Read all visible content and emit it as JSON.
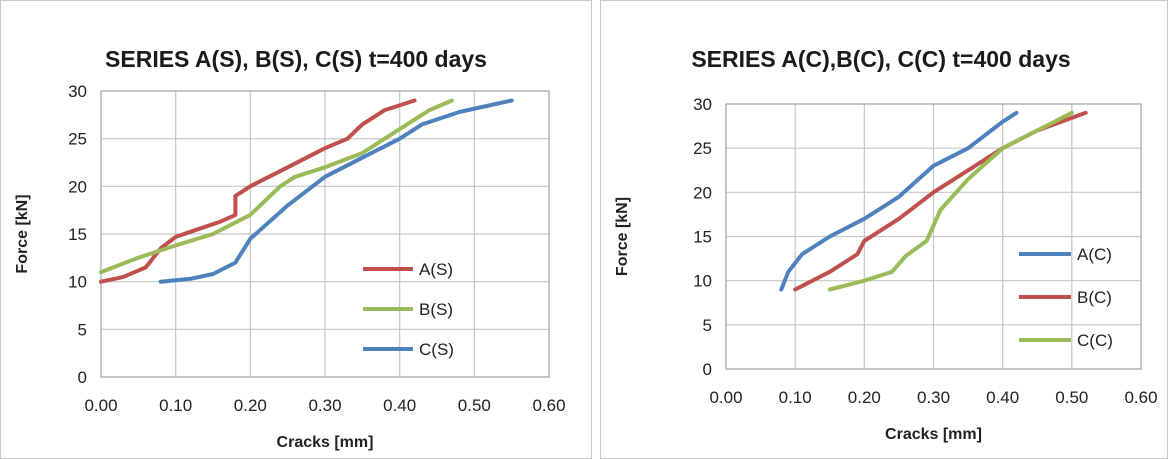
{
  "chart_data": [
    {
      "type": "line",
      "title": "SERIES A(S), B(S), C(S) t=400 days",
      "xlabel": "Cracks [mm]",
      "ylabel": "Force [kN]",
      "xlim": [
        0,
        0.6
      ],
      "ylim": [
        0,
        30
      ],
      "x_ticks": [
        "0.00",
        "0.10",
        "0.20",
        "0.30",
        "0.40",
        "0.50",
        "0.60"
      ],
      "y_ticks": [
        "0",
        "5",
        "10",
        "15",
        "20",
        "25",
        "30"
      ],
      "grid": true,
      "legend_position": "bottom-right",
      "series": [
        {
          "name": "A(S)",
          "color": "#c0504d",
          "points": [
            [
              0.0,
              10
            ],
            [
              0.03,
              10.5
            ],
            [
              0.06,
              11.5
            ],
            [
              0.08,
              13.5
            ],
            [
              0.1,
              14.7
            ],
            [
              0.13,
              15.5
            ],
            [
              0.16,
              16.3
            ],
            [
              0.18,
              17
            ],
            [
              0.18,
              19
            ],
            [
              0.2,
              20
            ],
            [
              0.25,
              22
            ],
            [
              0.3,
              24
            ],
            [
              0.33,
              25
            ],
            [
              0.35,
              26.5
            ],
            [
              0.38,
              28
            ],
            [
              0.42,
              29
            ]
          ]
        },
        {
          "name": "B(S)",
          "color": "#9bbb59",
          "points": [
            [
              0.0,
              11
            ],
            [
              0.05,
              12.5
            ],
            [
              0.1,
              13.8
            ],
            [
              0.15,
              15
            ],
            [
              0.2,
              17
            ],
            [
              0.24,
              20
            ],
            [
              0.26,
              21
            ],
            [
              0.3,
              22
            ],
            [
              0.35,
              23.5
            ],
            [
              0.4,
              26
            ],
            [
              0.44,
              28
            ],
            [
              0.47,
              29
            ]
          ]
        },
        {
          "name": "C(S)",
          "color": "#4f81bd",
          "points": [
            [
              0.08,
              10
            ],
            [
              0.12,
              10.3
            ],
            [
              0.15,
              10.8
            ],
            [
              0.18,
              12
            ],
            [
              0.2,
              14.5
            ],
            [
              0.25,
              18
            ],
            [
              0.3,
              21
            ],
            [
              0.35,
              23
            ],
            [
              0.4,
              25
            ],
            [
              0.43,
              26.5
            ],
            [
              0.48,
              27.8
            ],
            [
              0.55,
              29
            ]
          ]
        }
      ]
    },
    {
      "type": "line",
      "title": "SERIES A(C),B(C), C(C) t=400 days",
      "xlabel": "Cracks [mm]",
      "ylabel": "Force [kN]",
      "xlim": [
        0,
        0.6
      ],
      "ylim": [
        0,
        30
      ],
      "x_ticks": [
        "0.00",
        "0.10",
        "0.20",
        "0.30",
        "0.40",
        "0.50",
        "0.60"
      ],
      "y_ticks": [
        "0",
        "5",
        "10",
        "15",
        "20",
        "25",
        "30"
      ],
      "grid": true,
      "legend_position": "right",
      "series": [
        {
          "name": "A(C)",
          "color": "#4f81bd",
          "points": [
            [
              0.08,
              9
            ],
            [
              0.09,
              11
            ],
            [
              0.11,
              13
            ],
            [
              0.15,
              15
            ],
            [
              0.2,
              17
            ],
            [
              0.25,
              19.5
            ],
            [
              0.3,
              23
            ],
            [
              0.35,
              25
            ],
            [
              0.4,
              28
            ],
            [
              0.42,
              29
            ]
          ]
        },
        {
          "name": "B(C)",
          "color": "#c0504d",
          "points": [
            [
              0.1,
              9
            ],
            [
              0.15,
              11
            ],
            [
              0.19,
              13
            ],
            [
              0.2,
              14.5
            ],
            [
              0.25,
              17
            ],
            [
              0.3,
              20
            ],
            [
              0.35,
              22.5
            ],
            [
              0.4,
              25
            ],
            [
              0.45,
              27
            ],
            [
              0.52,
              29
            ]
          ]
        },
        {
          "name": "C(C)",
          "color": "#9bbb59",
          "points": [
            [
              0.15,
              9
            ],
            [
              0.2,
              10
            ],
            [
              0.24,
              11
            ],
            [
              0.26,
              12.8
            ],
            [
              0.29,
              14.5
            ],
            [
              0.31,
              18
            ],
            [
              0.35,
              21.5
            ],
            [
              0.4,
              25
            ],
            [
              0.45,
              27
            ],
            [
              0.5,
              29
            ]
          ]
        }
      ]
    }
  ]
}
